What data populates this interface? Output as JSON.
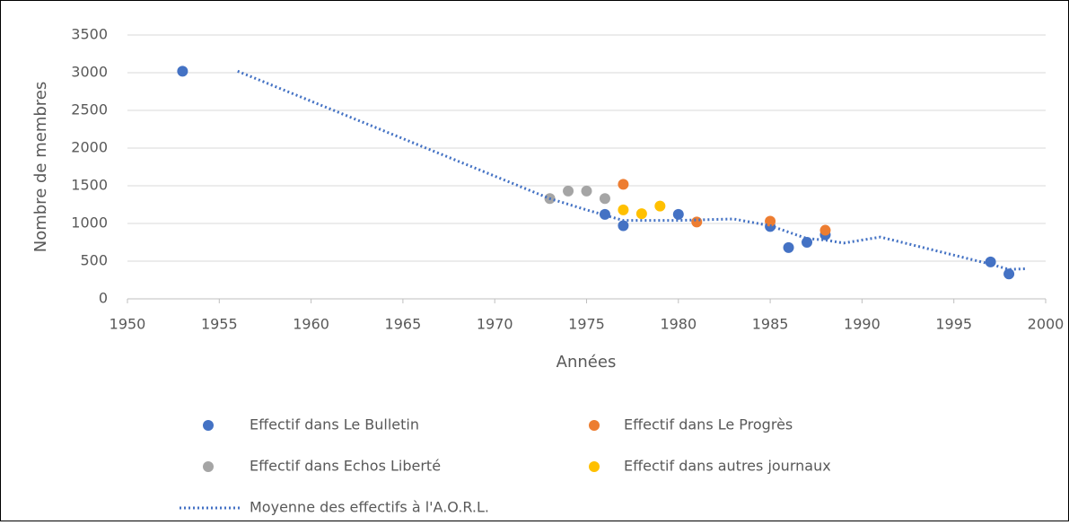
{
  "chart_data": {
    "type": "scatter",
    "xlabel": "Années",
    "ylabel": "Nombre de membres",
    "xlim": [
      1950,
      2000
    ],
    "xticks": [
      1950,
      1955,
      1960,
      1965,
      1970,
      1975,
      1980,
      1985,
      1990,
      1995,
      2000
    ],
    "ylim": [
      0,
      3500
    ],
    "yticks": [
      0,
      500,
      1000,
      1500,
      2000,
      2500,
      3000,
      3500
    ],
    "grid": true,
    "legend": "bottom",
    "series": [
      {
        "name": "Effectif dans Le Bulletin",
        "color": "#4472c4",
        "x": [
          1953,
          1976,
          1977,
          1980,
          1985,
          1986,
          1987,
          1988,
          1997,
          1998
        ],
        "values": [
          3020,
          1120,
          970,
          1120,
          960,
          680,
          750,
          850,
          490,
          330
        ]
      },
      {
        "name": "Effectif dans Le Progrès",
        "color": "#ed7d31",
        "x": [
          1977,
          1981,
          1985,
          1988
        ],
        "values": [
          1520,
          1020,
          1030,
          910
        ]
      },
      {
        "name": "Effectif dans Echos Liberté",
        "color": "#a5a5a5",
        "x": [
          1973,
          1974,
          1975,
          1976
        ],
        "values": [
          1330,
          1430,
          1430,
          1330
        ]
      },
      {
        "name": "Effectif dans autres journaux",
        "color": "#ffc000",
        "x": [
          1977,
          1978,
          1979
        ],
        "values": [
          1180,
          1130,
          1230
        ]
      },
      {
        "name": "Moyenne des effectifs à l'A.O.R.L.",
        "color": "#4472c4",
        "type": "line",
        "style": "dotted",
        "x": [
          1956,
          1973,
          1975,
          1977,
          1980,
          1983,
          1985,
          1987,
          1988,
          1989,
          1991,
          1997,
          1998,
          1999
        ],
        "values": [
          3020,
          1330,
          1180,
          1040,
          1040,
          1060,
          970,
          800,
          780,
          740,
          820,
          460,
          390,
          400
        ]
      }
    ]
  }
}
